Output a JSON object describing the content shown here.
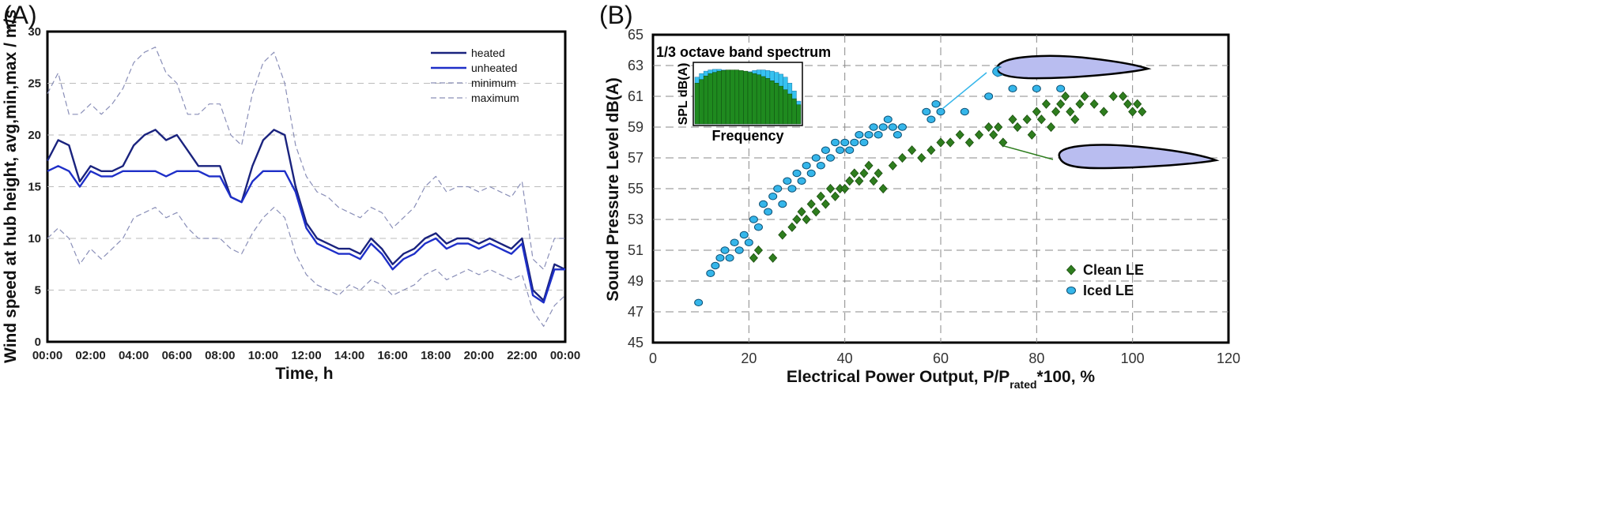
{
  "chart_data": [
    {
      "type": "line",
      "panel_label": "(A)",
      "xlabel": "Time, h",
      "ylabel": "Wind speed at hub height, avg,min,max / m/s",
      "x_ticks": [
        "00:00",
        "02:00",
        "04:00",
        "06:00",
        "08:00",
        "10:00",
        "12:00",
        "14:00",
        "16:00",
        "18:00",
        "20:00",
        "22:00",
        "00:00"
      ],
      "ylim": [
        0,
        30
      ],
      "y_ticks": [
        0,
        5,
        10,
        15,
        20,
        25,
        30
      ],
      "grid": "horizontal dashed",
      "legend": "top-right",
      "x_hours": [
        0,
        0.5,
        1,
        1.5,
        2,
        2.5,
        3,
        3.5,
        4,
        4.5,
        5,
        5.5,
        6,
        6.5,
        7,
        7.5,
        8,
        8.5,
        9,
        9.5,
        10,
        10.5,
        11,
        11.5,
        12,
        12.5,
        13,
        13.5,
        14,
        14.5,
        15,
        15.5,
        16,
        16.5,
        17,
        17.5,
        18,
        18.5,
        19,
        19.5,
        20,
        20.5,
        21,
        21.5,
        22,
        22.5,
        23,
        23.5,
        24
      ],
      "series": [
        {
          "name": "heated",
          "color": "#1a237e",
          "values": [
            17.5,
            19.5,
            19,
            15.5,
            17,
            16.5,
            16.5,
            17,
            19,
            20,
            20.5,
            19.5,
            20,
            18.5,
            17,
            17,
            17,
            14,
            13.5,
            17,
            19.5,
            20.5,
            20,
            15,
            11.5,
            10,
            9.5,
            9,
            9,
            8.5,
            10,
            9,
            7.5,
            8.5,
            9,
            10,
            10.5,
            9.5,
            10,
            10,
            9.5,
            10,
            9.5,
            9,
            10,
            5,
            4,
            7.5,
            7
          ]
        },
        {
          "name": "unheated",
          "color": "#1e2fc8",
          "values": [
            16.5,
            17,
            16.5,
            15,
            16.5,
            16,
            16,
            16.5,
            16.5,
            16.5,
            16.5,
            16,
            16.5,
            16.5,
            16.5,
            16,
            16,
            14,
            13.5,
            15.5,
            16.5,
            16.5,
            16.5,
            14.5,
            11,
            9.5,
            9,
            8.5,
            8.5,
            8,
            9.5,
            8.5,
            7,
            8,
            8.5,
            9.5,
            10,
            9,
            9.5,
            9.5,
            9,
            9.5,
            9,
            8.5,
            9.5,
            4.5,
            3.8,
            7,
            7
          ]
        },
        {
          "name": "minimum",
          "color": "#8a8fb8",
          "values": [
            10,
            11,
            10,
            7.5,
            9,
            8,
            9,
            10,
            12,
            12.5,
            13,
            12,
            12.5,
            11,
            10,
            10,
            10,
            9,
            8.5,
            10.5,
            12,
            13,
            12,
            8.5,
            6.5,
            5.5,
            5,
            4.5,
            5.5,
            5,
            6,
            5.5,
            4.5,
            5,
            5.5,
            6.5,
            7,
            6,
            6.5,
            7,
            6.5,
            7,
            6.5,
            6,
            6.5,
            3,
            1.5,
            3.5,
            4.5
          ]
        },
        {
          "name": "maximum",
          "color": "#8a8fb8",
          "values": [
            24,
            26,
            22,
            22,
            23,
            22,
            23,
            24.5,
            27,
            28,
            28.5,
            26,
            25,
            22,
            22,
            23,
            23,
            20,
            19,
            24,
            27,
            28,
            25,
            19,
            16,
            14.5,
            14,
            13,
            12.5,
            12,
            13,
            12.5,
            11,
            12,
            13,
            15,
            16,
            14.5,
            15,
            15,
            14.5,
            15,
            14.5,
            14,
            15.5,
            8,
            7,
            10,
            10
          ]
        }
      ]
    },
    {
      "type": "scatter",
      "panel_label": "(B)",
      "xlabel_pre": "Electrical Power Output, P/P",
      "xlabel_sub": "rated",
      "xlabel_post": "*100, %",
      "ylabel": "Sound Pressure Level dB(A)",
      "xlim": [
        0,
        120
      ],
      "x_ticks": [
        0,
        20,
        40,
        60,
        80,
        100,
        120
      ],
      "ylim": [
        45,
        65
      ],
      "y_ticks": [
        45,
        47,
        49,
        51,
        53,
        55,
        57,
        59,
        61,
        63,
        65
      ],
      "grid": "dashed both",
      "legend": "bottom-right",
      "series": [
        {
          "name": "Clean LE",
          "marker": "diamond",
          "color": "#2e7d1e",
          "x": [
            21,
            22,
            25,
            27,
            29,
            30,
            31,
            32,
            33,
            34,
            35,
            36,
            37,
            38,
            39,
            40,
            41,
            42,
            43,
            44,
            45,
            46,
            47,
            48,
            50,
            52,
            54,
            56,
            58,
            60,
            62,
            64,
            66,
            68,
            70,
            71,
            72,
            73,
            75,
            76,
            78,
            79,
            80,
            81,
            82,
            83,
            84,
            85,
            86,
            87,
            88,
            89,
            90,
            92,
            94,
            96,
            98,
            99,
            100,
            101,
            102
          ],
          "y": [
            50.5,
            51,
            50.5,
            52,
            52.5,
            53,
            53.5,
            53,
            54,
            53.5,
            54.5,
            54,
            55,
            54.5,
            55,
            55,
            55.5,
            56,
            55.5,
            56,
            56.5,
            55.5,
            56,
            55,
            56.5,
            57,
            57.5,
            57,
            57.5,
            58,
            58,
            58.5,
            58,
            58.5,
            59,
            58.5,
            59,
            58,
            59.5,
            59,
            59.5,
            58.5,
            60,
            59.5,
            60.5,
            59,
            60,
            60.5,
            61,
            60,
            59.5,
            60.5,
            61,
            60.5,
            60,
            61,
            61,
            60.5,
            60,
            60.5,
            60
          ]
        },
        {
          "name": "Iced LE",
          "marker": "circle",
          "color": "#35b6ea",
          "x": [
            9.5,
            12,
            13,
            14,
            15,
            16,
            17,
            18,
            19,
            20,
            21,
            22,
            23,
            24,
            25,
            26,
            27,
            28,
            29,
            30,
            31,
            32,
            33,
            34,
            35,
            36,
            37,
            38,
            39,
            40,
            41,
            42,
            43,
            44,
            45,
            46,
            47,
            48,
            49,
            50,
            51,
            52,
            57,
            58,
            59,
            60,
            65,
            70,
            75,
            80,
            85
          ],
          "y": [
            47.6,
            49.5,
            50,
            50.5,
            51,
            50.5,
            51.5,
            51,
            52,
            51.5,
            53,
            52.5,
            54,
            53.5,
            54.5,
            55,
            54,
            55.5,
            55,
            56,
            55.5,
            56.5,
            56,
            57,
            56.5,
            57.5,
            57,
            58,
            57.5,
            58,
            57.5,
            58,
            58.5,
            58,
            58.5,
            59,
            58.5,
            59,
            59.5,
            59,
            58.5,
            59,
            60,
            59.5,
            60.5,
            60,
            60,
            61,
            61.5,
            61.5,
            61.5
          ]
        }
      ],
      "inset": {
        "title": "1/3 octave band spectrum",
        "ylabel": "SPL dB(A)",
        "xlabel": "Frequency",
        "clean_bars": [
          0.68,
          0.74,
          0.8,
          0.84,
          0.86,
          0.88,
          0.89,
          0.9,
          0.9,
          0.9,
          0.89,
          0.88,
          0.86,
          0.84,
          0.82,
          0.79,
          0.76,
          0.72,
          0.68,
          0.63,
          0.57,
          0.5,
          0.42,
          0.32
        ],
        "iced_bars": [
          0.78,
          0.84,
          0.88,
          0.9,
          0.91,
          0.91,
          0.9,
          0.88,
          0.86,
          0.84,
          0.84,
          0.85,
          0.87,
          0.89,
          0.9,
          0.9,
          0.89,
          0.88,
          0.86,
          0.83,
          0.78,
          0.68,
          0.55,
          0.38
        ]
      }
    }
  ]
}
